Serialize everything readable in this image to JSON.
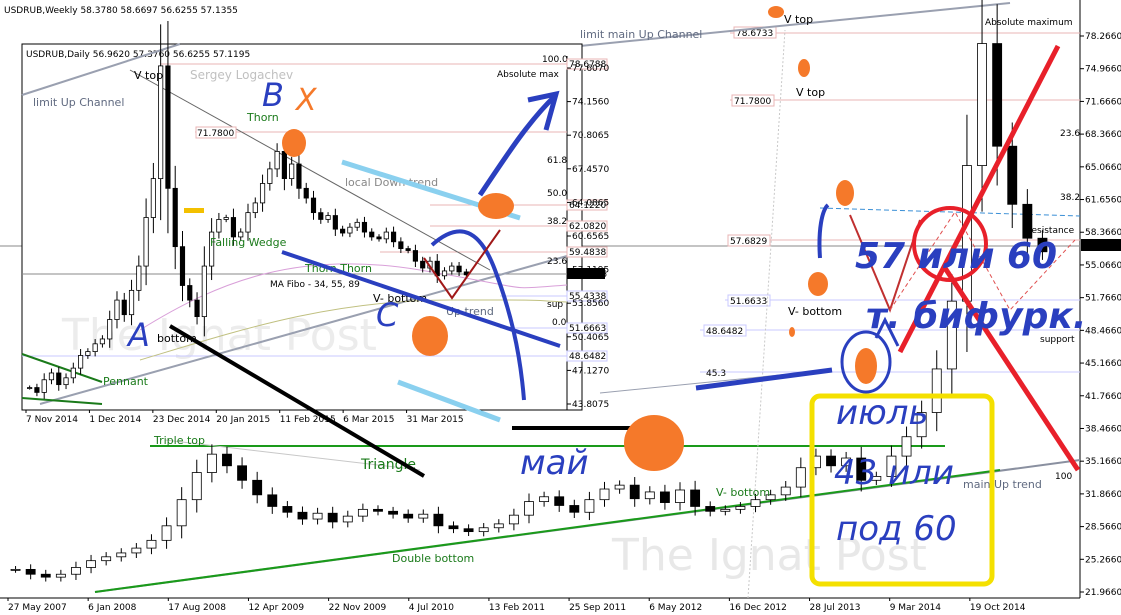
{
  "weekly": {
    "header": "USDRUB,Weekly  58.3780 58.6697 56.6255 57.1355",
    "watermark": "The Ignat Post",
    "price_tag": "57.1355",
    "annotations": {
      "v_top": "V top",
      "v_top2": "V top",
      "v_bottom": "V- bottom",
      "v_bottom2": "V- bottom",
      "triple_top": "Triple top",
      "triangle": "Triangle",
      "double_bottom": "Double bottom",
      "limit_main_up_channel": "limit main Up Channel",
      "main_up_trend": "main Up trend",
      "absolute_maximum": "Absolute maximum",
      "resistance": "resistance",
      "support": "support",
      "lvl_786": "78.6733",
      "lvl_717": "71.7800",
      "lvl_576": "57.6829",
      "lvl_516": "51.6633",
      "lvl_486": "48.6482",
      "lvl_453": "45.3",
      "fib_236": "23.6",
      "fib_382": "38.2",
      "fib_100": "100"
    },
    "handwriting": {
      "may": "май",
      "line1": "57 или 60",
      "line2": "т. бифурк.",
      "july": "июль",
      "or43": "43 или",
      "under60": "под 60"
    }
  },
  "daily": {
    "header": "USDRUB,Daily  56.9620 57.3760 56.6255 57.1195",
    "author": "Sergey Logachev",
    "price_tag": "57.1195",
    "annotations": {
      "v_top": "V top",
      "limit_up_channel": "limit Up Channel",
      "thorn": "Thorn",
      "thorn_thorn": "Thorn Thorn",
      "falling_wedge": "Falling Wedge",
      "local_down_trend": "local Down trend",
      "ma_fibo": "MA Fibo - 34, 55, 89",
      "pennant": "Pennant",
      "bottom": "bottom",
      "v_bottom": "V- bottom",
      "up_trend": "Up trend",
      "absolute_max": "Absolute max",
      "sup": "sup",
      "lvl_786": "78.6788",
      "lvl_717": "71.7800",
      "lvl_641": "64.1220",
      "lvl_598": "59.4838",
      "lvl_621": "62.0820",
      "lvl_554": "55.4338",
      "lvl_516": "51.6663",
      "lvl_486": "48.6482",
      "fib_100": "100.0",
      "fib_618": "61.8",
      "fib_500": "50.0",
      "fib_382": "38.2",
      "fib_236": "23.6",
      "fib_00": "0.0"
    },
    "handwriting": {
      "A": "A",
      "B": "B",
      "C": "C",
      "X": "X"
    }
  },
  "chart_data": [
    {
      "type": "candlestick",
      "title": "USDRUB,Weekly",
      "ohlc_last": {
        "open": 58.378,
        "high": 58.6697,
        "low": 56.6255,
        "close": 57.1355
      },
      "y_ticks": [
        "78.2660",
        "74.9660",
        "71.6660",
        "68.3660",
        "65.0660",
        "61.6560",
        "58.3660",
        "55.0660",
        "51.7660",
        "48.4660",
        "45.1660",
        "41.7660",
        "38.4660",
        "35.1660",
        "31.8660",
        "28.5660",
        "25.2660",
        "21.9660"
      ],
      "x_ticks": [
        "27 May 2007",
        "6 Jan 2008",
        "17 Aug 2008",
        "12 Apr 2009",
        "22 Nov 2009",
        "4 Jul 2010",
        "13 Feb 2011",
        "25 Sep 2011",
        "6 May 2012",
        "16 Dec 2012",
        "28 Jul 2013",
        "9 Mar 2014",
        "19 Oct 2014"
      ],
      "ylim": [
        21.966,
        80.0
      ],
      "series": [
        {
          "values": [
            24.3,
            23.8,
            23.5,
            23.8,
            24.5,
            25.2,
            25.6,
            26.0,
            26.5,
            27.3,
            28.8,
            31.5,
            34.3,
            36.2,
            35.0,
            33.5,
            32.0,
            30.8,
            30.2,
            29.5,
            30.1,
            29.2,
            29.8,
            30.5,
            30.3,
            30.0,
            29.6,
            30.0,
            28.8,
            28.5,
            28.2,
            28.6,
            29.0,
            29.9,
            31.3,
            31.8,
            30.9,
            30.2,
            31.5,
            32.6,
            33.0,
            31.6,
            32.3,
            31.2,
            32.5,
            30.8,
            30.3,
            30.5,
            30.8,
            31.5,
            32.0,
            32.8,
            34.8,
            36.0,
            35.0,
            35.8,
            33.5,
            33.9,
            36.0,
            38.0,
            40.5,
            45.0,
            52.0,
            66.0,
            78.6,
            68.0,
            62.0,
            58.5,
            57.1
          ]
        }
      ]
    },
    {
      "type": "candlestick",
      "title": "USDRUB,Daily",
      "ohlc_last": {
        "open": 56.962,
        "high": 57.376,
        "low": 56.6255,
        "close": 57.1195
      },
      "y_ticks": [
        "77.6070",
        "74.1560",
        "70.8065",
        "67.4570",
        "64.0865",
        "60.6565",
        "57.1195",
        "53.8560",
        "50.4065",
        "47.1270",
        "43.8075"
      ],
      "x_ticks": [
        "7 Nov 2014",
        "1 Dec 2014",
        "23 Dec 2014",
        "20 Jan 2015",
        "11 Feb 2015",
        "6 Mar 2015",
        "31 Mar 2015"
      ],
      "ylim": [
        43.8075,
        79.0
      ],
      "series": [
        {
          "values": [
            45.5,
            45.0,
            46.3,
            47.0,
            45.8,
            46.5,
            47.5,
            48.8,
            49.2,
            50.0,
            50.5,
            52.5,
            54.5,
            53.0,
            55.5,
            58.0,
            63.0,
            67.0,
            78.6,
            66.0,
            60.0,
            56.0,
            54.5,
            52.8,
            58.0,
            61.5,
            62.8,
            63.0,
            61.0,
            61.5,
            63.5,
            64.5,
            66.5,
            68.0,
            69.8,
            67.0,
            68.5,
            66.0,
            65.0,
            63.5,
            62.8,
            63.2,
            61.8,
            61.4,
            62.0,
            62.5,
            61.5,
            61.0,
            60.8,
            61.5,
            60.5,
            59.8,
            59.6,
            58.5,
            57.8,
            58.5,
            57.0,
            57.5,
            58.0,
            57.4,
            57.1
          ]
        }
      ]
    }
  ]
}
